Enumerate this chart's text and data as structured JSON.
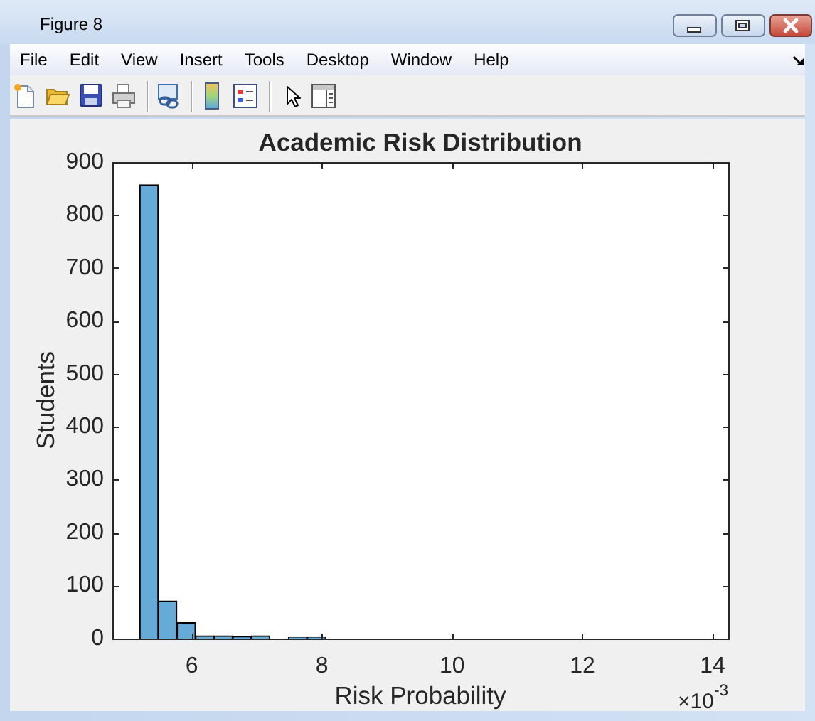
{
  "chart_data": {
    "type": "histogram",
    "title": "Academic Risk Distribution",
    "xlabel": "Risk Probability",
    "ylabel": "Students",
    "bins": [
      5.2,
      5.486,
      5.771,
      6.057,
      6.343,
      6.629,
      6.914,
      7.2,
      7.486,
      7.771,
      8.057
    ],
    "values": [
      857,
      71,
      30,
      5,
      5,
      3,
      5,
      0,
      2,
      2
    ],
    "color": "#66aad7",
    "xlim": [
      4.78,
      14.24
    ],
    "xticks": [
      6,
      8,
      10,
      12,
      14
    ],
    "ylim": [
      0,
      900
    ],
    "yticks": [
      0,
      100,
      200,
      300,
      400,
      500,
      600,
      700,
      800,
      900
    ],
    "annotations": [
      "×10$^{-3}$",
      "Figure 8",
      "File",
      "Edit",
      "View",
      "Insert",
      "Tools",
      "Desktop",
      "Window",
      "Help"
    ]
  }
}
